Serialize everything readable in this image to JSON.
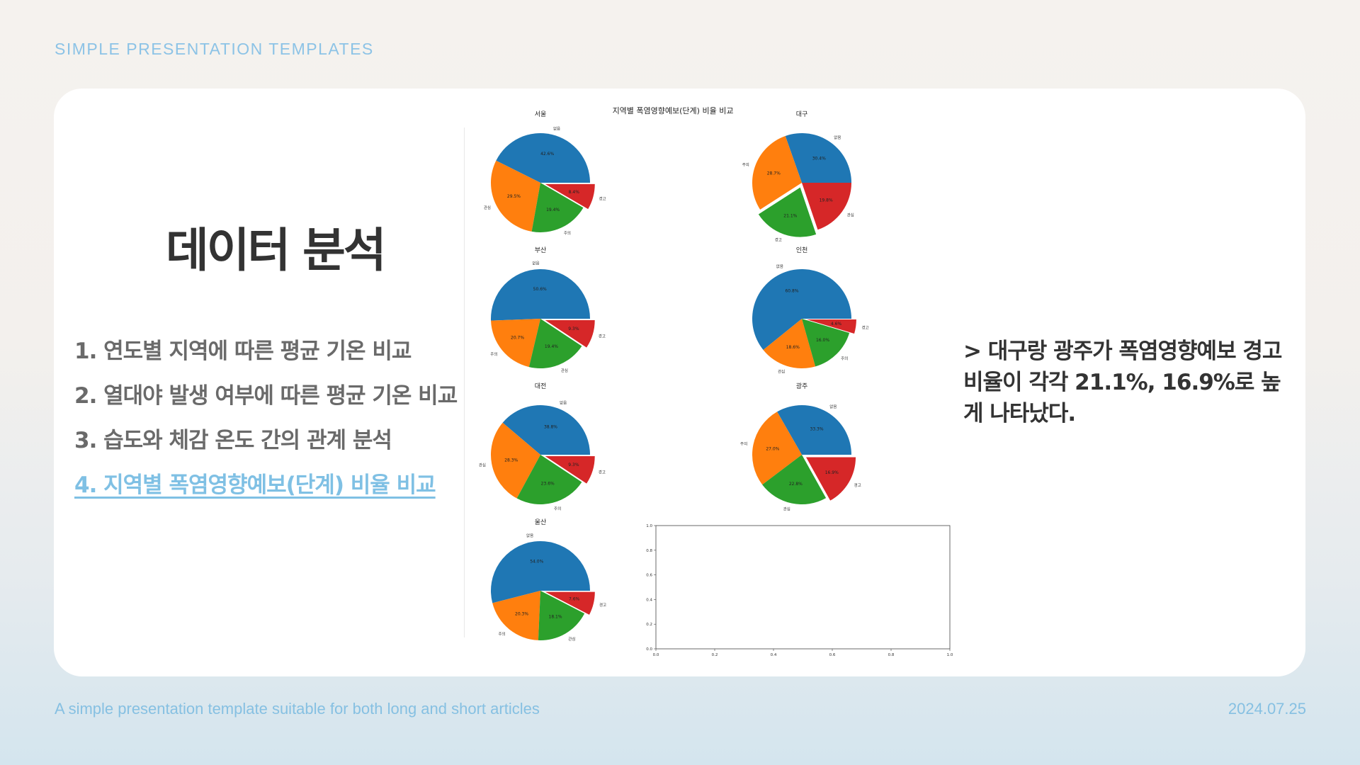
{
  "header": {
    "brand": "SIMPLE PRESENTATION TEMPLATES"
  },
  "slide": {
    "title": "데이터 분석",
    "agenda": [
      "1. 연도별 지역에 따른 평균 기온 비교",
      "2. 열대야 발생 여부에 따른 평균 기온 비교",
      "3. 습도와 체감 온도 간의 관계 분석",
      "4. 지역별 폭염영향예보(단계) 비율 비교"
    ],
    "active_index": 3,
    "note": "> 대구랑 광주가 폭염영향예보 경고 비율이 각각 21.1%, 16.9%로 높게 나타났다."
  },
  "footer": {
    "text": "A simple presentation template suitable for both long and short articles",
    "date": "2024.07.25"
  },
  "colors": {
    "accent": "#7fc0e4",
    "blue": "#1f77b4",
    "orange": "#ff7f0e",
    "green": "#2ca02c",
    "red": "#d62728"
  },
  "chart_data": {
    "type": "pie",
    "title": "지역별 폭염영향예보(단계) 비율 비교",
    "categories": [
      "없음",
      "관심",
      "주의",
      "경고"
    ],
    "pies": [
      {
        "name": "서울",
        "values": [
          42.6,
          29.5,
          19.4,
          8.4
        ],
        "labels": [
          "없음",
          "관심",
          "주의",
          "경고"
        ],
        "explode": 3
      },
      {
        "name": "대구",
        "values": [
          30.4,
          28.7,
          21.1,
          19.8
        ],
        "labels": [
          "없음",
          "주의",
          "경고",
          "관심"
        ],
        "explode": 2
      },
      {
        "name": "부산",
        "values": [
          50.6,
          20.7,
          19.4,
          9.3
        ],
        "labels": [
          "없음",
          "주의",
          "관심",
          "경고"
        ],
        "explode": 3
      },
      {
        "name": "인천",
        "values": [
          60.8,
          18.6,
          16.0,
          4.6
        ],
        "labels": [
          "없음",
          "관심",
          "주의",
          "경고"
        ],
        "explode": 3
      },
      {
        "name": "대전",
        "values": [
          38.8,
          28.3,
          23.6,
          9.3
        ],
        "labels": [
          "없음",
          "관심",
          "주의",
          "경고"
        ],
        "explode": 3
      },
      {
        "name": "광주",
        "values": [
          33.3,
          27.0,
          22.8,
          16.9
        ],
        "labels": [
          "없음",
          "주의",
          "관심",
          "경고"
        ],
        "explode": 3
      },
      {
        "name": "울산",
        "values": [
          54.0,
          20.3,
          18.1,
          7.6
        ],
        "labels": [
          "없음",
          "주의",
          "관심",
          "경고"
        ],
        "explode": 3
      }
    ],
    "empty_axes": {
      "xlim": [
        0,
        1
      ],
      "ylim": [
        0,
        1
      ],
      "xticks": [
        "0.0",
        "0.2",
        "0.4",
        "0.6",
        "0.8",
        "1.0"
      ],
      "yticks": [
        "0.0",
        "0.2",
        "0.4",
        "0.6",
        "0.8",
        "1.0"
      ]
    }
  }
}
